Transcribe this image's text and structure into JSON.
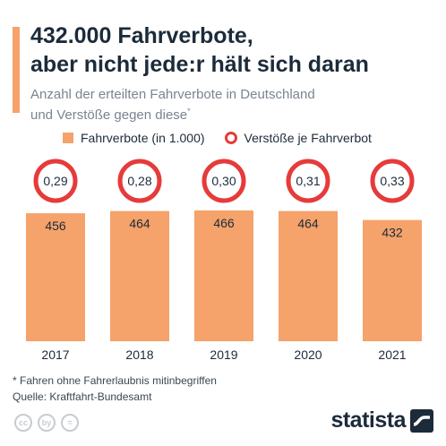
{
  "title_line1": "432.000 Fahrverbote,",
  "title_line2": "aber nicht jede:r hält sich daran",
  "subtitle_line1": "Anzahl der erteilten Fahrverbote in Deutschland",
  "subtitle_line2": "und Verstöße gegen diese",
  "subtitle_mark": "*",
  "legend": {
    "bars": "Fahrverbote (in 1.000)",
    "circles": "Verstöße je Fahrverbot"
  },
  "colors": {
    "bar": "#f5a26b",
    "ring": "#e63b3b",
    "text": "#1c2b3a"
  },
  "chart_data": {
    "type": "bar",
    "categories": [
      "2017",
      "2018",
      "2019",
      "2020",
      "2021"
    ],
    "series": [
      {
        "name": "Fahrverbote (in 1.000)",
        "values": [
          456,
          464,
          466,
          464,
          432
        ],
        "labels": [
          "456",
          "464",
          "466",
          "464",
          "432"
        ]
      },
      {
        "name": "Verstöße je Fahrverbot",
        "values": [
          0.29,
          0.28,
          0.3,
          0.31,
          0.33
        ],
        "labels": [
          "0,29",
          "0,28",
          "0,30",
          "0,31",
          "0,33"
        ]
      }
    ],
    "ylim": [
      0,
      466
    ]
  },
  "footnote": "* Fahren ohne Fahrerlaubnis mitinbegriffen",
  "source": "Quelle: Kraftfahrt-Bundesamt",
  "cc_icons": [
    "cc",
    "by",
    "="
  ],
  "logo": "statista"
}
